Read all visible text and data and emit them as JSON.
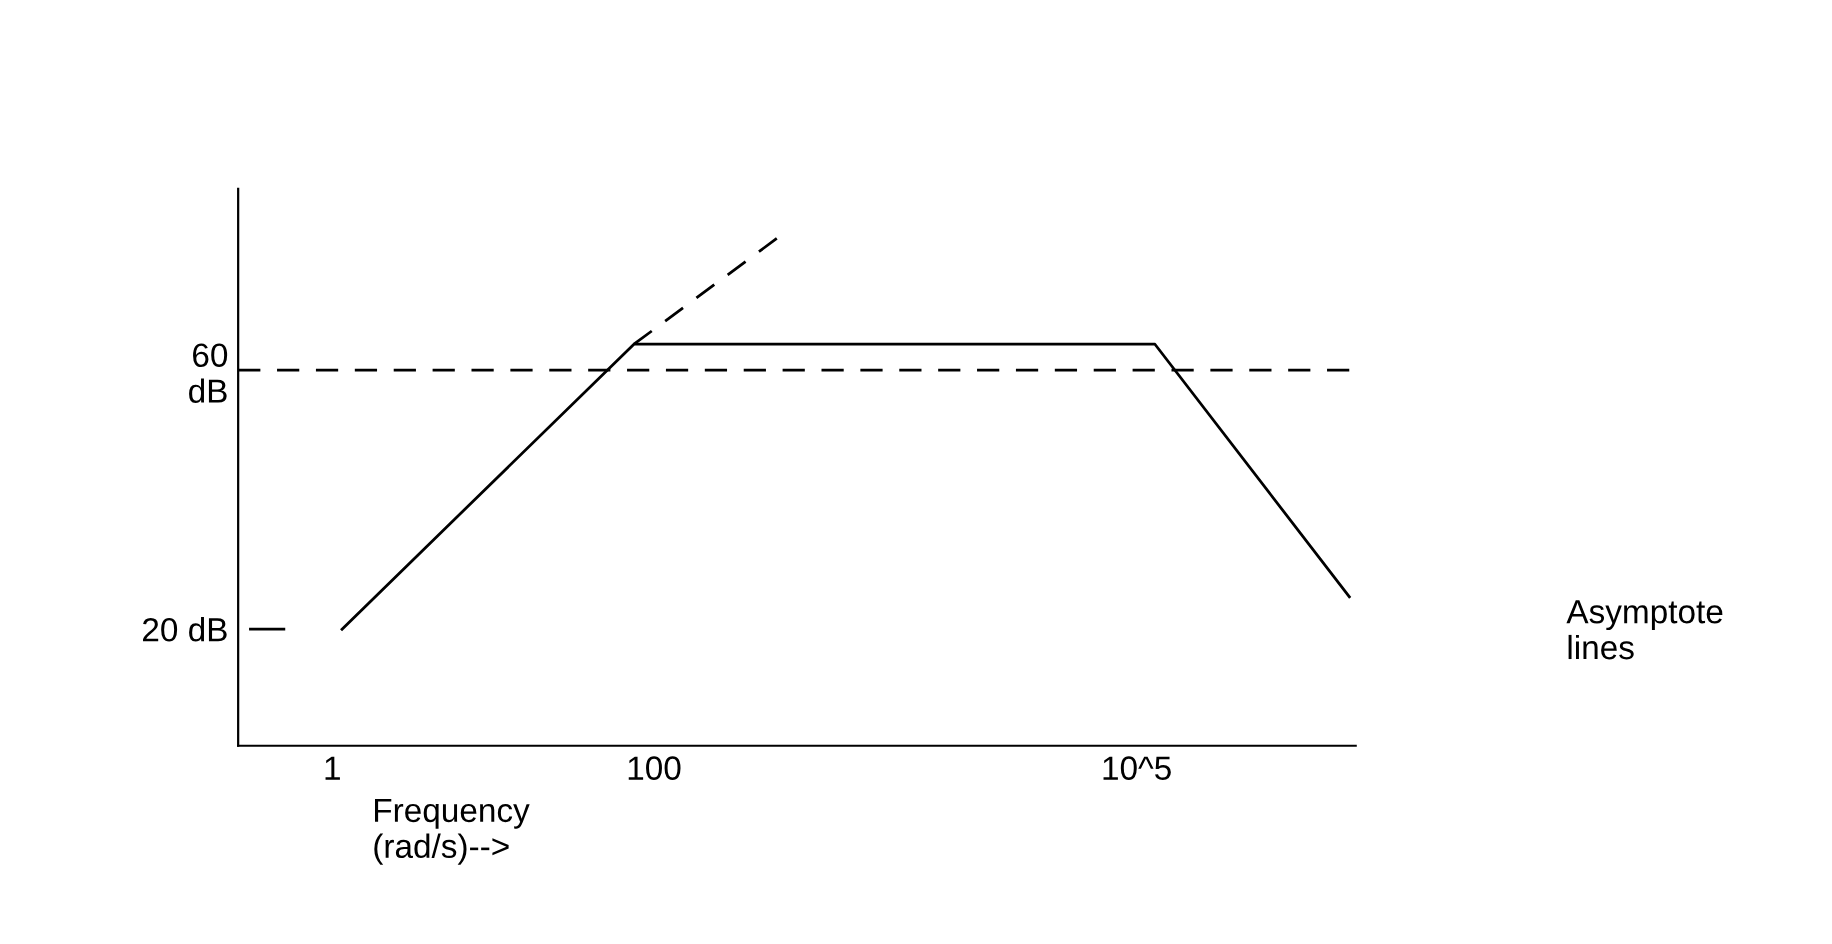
{
  "chart_data": {
    "type": "line",
    "xlabel": "Frequency\n(rad/s)-->",
    "log": "x",
    "xlim": [
      0.26,
      2300000
    ],
    "ylim": [
      2,
      88
    ],
    "xticks": [
      1,
      100,
      {
        "value": 100000,
        "label": "10^5"
      }
    ],
    "yticks": [
      {
        "value": 20,
        "label": "20 dB"
      },
      {
        "value": 60,
        "label": "60\ndB"
      }
    ],
    "grid": false,
    "legend": false,
    "marker": "none",
    "series": [
      {
        "color": "#000000",
        "line_style": "solid",
        "x": [
          1.15,
          75,
          130000,
          2100000
        ],
        "values": [
          20,
          64,
          64,
          25
        ]
      },
      {
        "color": "#000000",
        "line_style": "dashed",
        "x": [
          75,
          630
        ],
        "values": [
          64,
          81
        ]
      },
      {
        "color": "#000000",
        "line_style": "solid",
        "x": [
          0.31,
          0.5
        ],
        "values": [
          20,
          20
        ]
      }
    ],
    "ref_lines": [
      {
        "axis": "y",
        "value": 60,
        "color": "#000000",
        "line_style": "dashed"
      }
    ],
    "annotations": [
      "Asymptote\nlines"
    ]
  }
}
